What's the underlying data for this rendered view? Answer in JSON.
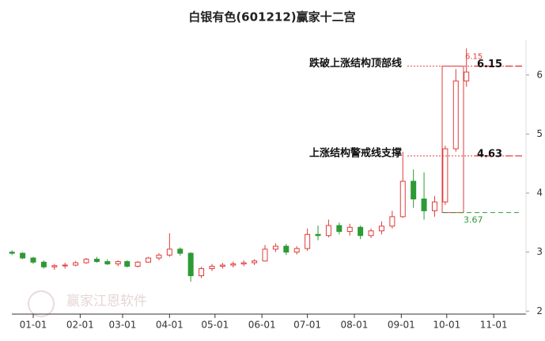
{
  "chart_data": {
    "type": "candlestick",
    "title": "白银有色(601212)赢家十二宫",
    "x": [
      "12-18",
      "12-25",
      "01-01",
      "01-08",
      "01-15",
      "01-22",
      "01-29",
      "02-05",
      "02-12",
      "02-19",
      "02-26",
      "03-04",
      "03-11",
      "03-18",
      "03-25",
      "04-01",
      "04-08",
      "04-15",
      "04-22",
      "04-29",
      "05-06",
      "05-13",
      "05-20",
      "05-27",
      "06-03",
      "06-10",
      "06-17",
      "06-24",
      "07-01",
      "07-08",
      "07-15",
      "07-22",
      "07-29",
      "08-05",
      "08-12",
      "08-19",
      "08-26",
      "09-02",
      "09-09",
      "09-16",
      "09-23",
      "09-30",
      "10-07",
      "10-14"
    ],
    "open": [
      3.0,
      2.98,
      2.9,
      2.83,
      2.75,
      2.77,
      2.78,
      2.82,
      2.88,
      2.84,
      2.8,
      2.84,
      2.76,
      2.83,
      2.9,
      2.95,
      3.05,
      2.98,
      2.6,
      2.72,
      2.76,
      2.78,
      2.8,
      2.82,
      2.85,
      3.05,
      3.1,
      3.0,
      3.06,
      3.3,
      3.28,
      3.45,
      3.35,
      3.42,
      3.28,
      3.36,
      3.44,
      3.6,
      4.2,
      3.9,
      3.7,
      3.85,
      4.75,
      5.9
    ],
    "high": [
      3.03,
      3.0,
      2.92,
      2.86,
      2.8,
      2.82,
      2.85,
      2.9,
      2.92,
      2.88,
      2.86,
      2.86,
      2.85,
      2.92,
      2.98,
      3.32,
      3.08,
      3.0,
      2.75,
      2.8,
      2.82,
      2.84,
      2.86,
      2.88,
      3.12,
      3.15,
      3.14,
      3.1,
      3.4,
      3.45,
      3.55,
      3.5,
      3.48,
      3.45,
      3.4,
      3.52,
      3.7,
      4.7,
      4.4,
      4.35,
      3.95,
      4.8,
      6.1,
      6.45
    ],
    "low": [
      2.95,
      2.88,
      2.8,
      2.72,
      2.7,
      2.72,
      2.76,
      2.8,
      2.82,
      2.78,
      2.76,
      2.74,
      2.74,
      2.82,
      2.86,
      2.92,
      2.94,
      2.5,
      2.56,
      2.68,
      2.72,
      2.74,
      2.76,
      2.78,
      2.84,
      3.0,
      2.95,
      2.96,
      3.02,
      3.2,
      3.25,
      3.3,
      3.28,
      3.22,
      3.24,
      3.3,
      3.4,
      3.58,
      3.75,
      3.55,
      3.6,
      3.8,
      4.7,
      5.8
    ],
    "close": [
      2.98,
      2.9,
      2.83,
      2.75,
      2.77,
      2.78,
      2.82,
      2.88,
      2.84,
      2.8,
      2.84,
      2.76,
      2.83,
      2.9,
      2.95,
      3.05,
      2.98,
      2.6,
      2.72,
      2.76,
      2.78,
      2.8,
      2.82,
      2.85,
      3.05,
      3.1,
      3.0,
      3.06,
      3.3,
      3.28,
      3.45,
      3.35,
      3.42,
      3.28,
      3.36,
      3.44,
      3.6,
      4.2,
      3.9,
      3.7,
      3.85,
      4.75,
      5.9,
      6.05
    ],
    "up_color": "#e23b3b",
    "down_color": "#2e9a36",
    "ylim": [
      1.95,
      6.6
    ],
    "yticks": [
      2,
      3,
      4,
      5,
      6
    ],
    "xticks": [
      "01-01",
      "02-01",
      "03-01",
      "04-01",
      "05-01",
      "06-01",
      "07-01",
      "08-01",
      "09-01",
      "10-01",
      "11-01"
    ],
    "levels": [
      {
        "label": "跌破上涨结构顶部线",
        "value": 6.15,
        "color": "#e23b3b"
      },
      {
        "label": "上涨结构警戒线支撑",
        "value": 4.63,
        "color": "#e23b3b"
      },
      {
        "value": 3.67,
        "color": "#2e9a36"
      }
    ],
    "watermark": "赢家江恩软件"
  }
}
